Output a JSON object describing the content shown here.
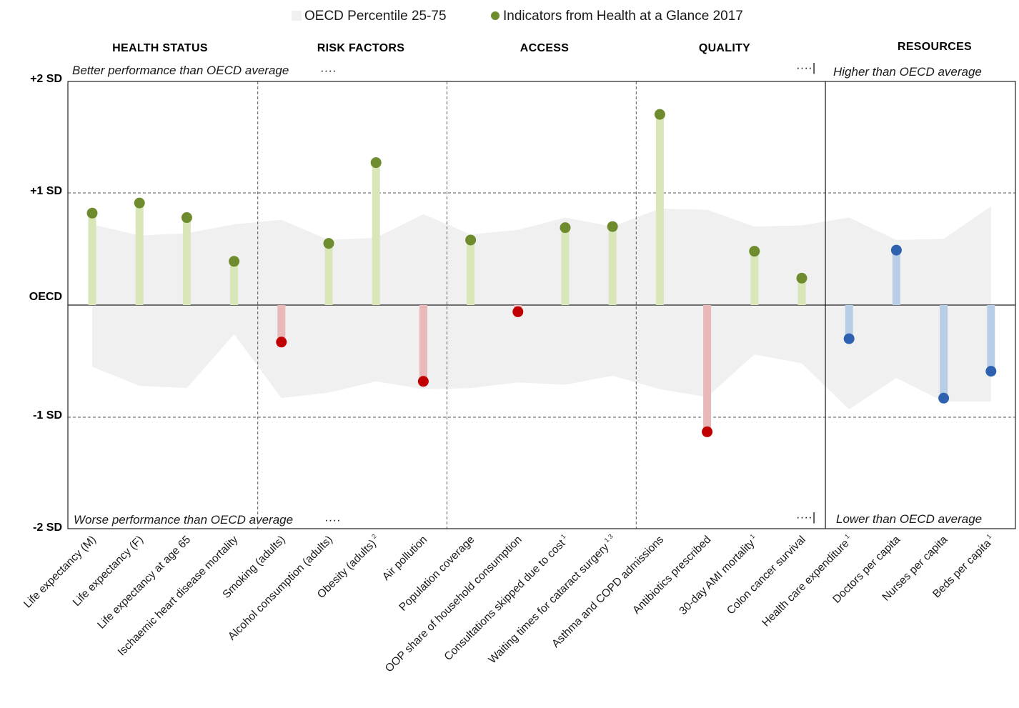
{
  "legend": {
    "band_label": "OECD Percentile 25-75",
    "dot_label": "Indicators from Health at a Glance 2017"
  },
  "sections": [
    {
      "label": "HEALTH STATUS"
    },
    {
      "label": "RISK FACTORS"
    },
    {
      "label": "ACCESS"
    },
    {
      "label": "QUALITY"
    },
    {
      "label": "RESOURCES"
    }
  ],
  "annotations": {
    "top_left": "Better performance than OECD average",
    "bottom_left": "Worse performance than OECD average",
    "top_right": "Higher than OECD average",
    "bottom_right": "Lower than OECD average",
    "ellipsis": "····",
    "ellipsis_bar": "····|"
  },
  "colors": {
    "good_dot": "#6e8b2e",
    "good_stem": "#d8e6b8",
    "bad_dot": "#c00000",
    "bad_stem": "#e9b8b8",
    "resource_dot": "#2e62b0",
    "resource_stem": "#b8cde6",
    "band": "#f0f0f0"
  },
  "chart_data": {
    "type": "lollipop",
    "y_axis": {
      "ylim": [
        -2,
        2
      ],
      "ticks": [
        {
          "value": 2,
          "label": "+2 SD"
        },
        {
          "value": 1,
          "label": "+1 SD"
        },
        {
          "value": 0,
          "label": "OECD"
        },
        {
          "value": -1,
          "label": "-1 SD"
        },
        {
          "value": -2,
          "label": "-2 SD"
        }
      ]
    },
    "categories": [
      {
        "label": "Life expectancy (M)",
        "sup": ""
      },
      {
        "label": "Life expectancy (F)",
        "sup": ""
      },
      {
        "label": "Life expectancy at age 65",
        "sup": ""
      },
      {
        "label": "Ischaemic heart disease mortality",
        "sup": ""
      },
      {
        "label": "Smoking (adults)",
        "sup": ""
      },
      {
        "label": "Alcohol consumption (adults)",
        "sup": ""
      },
      {
        "label": "Obesity (adults)",
        "sup": "2"
      },
      {
        "label": "Air pollution",
        "sup": ""
      },
      {
        "label": "Population coverage",
        "sup": ""
      },
      {
        "label": "OOP share of household consumption",
        "sup": ""
      },
      {
        "label": "Consultations skipped due to cost",
        "sup": "1"
      },
      {
        "label": "Waiting times for cataract surgery",
        "sup": "1 3"
      },
      {
        "label": "Asthma and COPD admissions",
        "sup": ""
      },
      {
        "label": "Antibiotics prescribed",
        "sup": ""
      },
      {
        "label": "30-day AMI mortality",
        "sup": "1"
      },
      {
        "label": "Colon cancer survival",
        "sup": ""
      },
      {
        "label": "Health care expenditure",
        "sup": "1"
      },
      {
        "label": "Doctors per capita",
        "sup": ""
      },
      {
        "label": "Nurses per capita",
        "sup": ""
      },
      {
        "label": "Beds per capita",
        "sup": "1"
      }
    ],
    "series": [
      {
        "name": "Indicators from Health at a Glance 2017",
        "values": [
          0.82,
          0.91,
          0.78,
          0.39,
          -0.33,
          0.55,
          1.27,
          -0.68,
          0.58,
          -0.06,
          0.69,
          0.7,
          1.7,
          -1.13,
          0.48,
          0.24,
          -0.3,
          0.49,
          -0.83,
          -0.59
        ],
        "status": [
          "good",
          "good",
          "good",
          "good",
          "bad",
          "good",
          "good",
          "bad",
          "good",
          "bad",
          "good",
          "good",
          "good",
          "bad",
          "good",
          "good",
          "resource",
          "resource",
          "resource",
          "resource"
        ]
      },
      {
        "name": "OECD Percentile 25-75",
        "upper": [
          0.72,
          0.62,
          0.64,
          0.72,
          0.76,
          0.58,
          0.6,
          0.81,
          0.63,
          0.67,
          0.78,
          0.7,
          0.86,
          0.85,
          0.7,
          0.71,
          0.78,
          0.58,
          0.59,
          0.88
        ],
        "lower": [
          -0.55,
          -0.72,
          -0.74,
          -0.26,
          -0.83,
          -0.78,
          -0.68,
          -0.75,
          -0.74,
          -0.69,
          -0.71,
          -0.63,
          -0.75,
          -0.82,
          -0.44,
          -0.52,
          -0.93,
          -0.65,
          -0.86,
          -0.86
        ]
      }
    ],
    "section_dividers_after_index": [
      3,
      7,
      11,
      15
    ],
    "resources_start_index": 16
  }
}
